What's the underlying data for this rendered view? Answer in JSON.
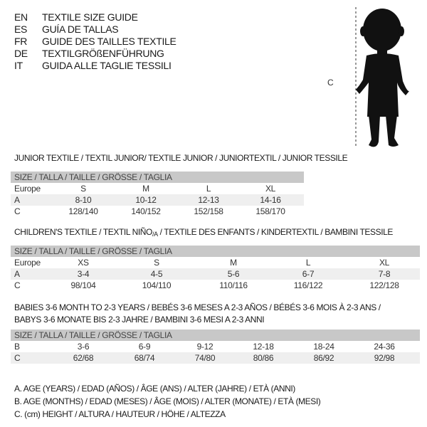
{
  "languages": [
    {
      "code": "EN",
      "text": "TEXTILE SIZE GUIDE"
    },
    {
      "code": "ES",
      "text": "GUÍA DE TALLAS"
    },
    {
      "code": "FR",
      "text": "GUIDE DES TAILLES TEXTILE"
    },
    {
      "code": "DE",
      "text": "TEXTILGRÖßENFÜHRUNG"
    },
    {
      "code": "IT",
      "text": "GUIDA ALLE TAGLIE TESSILI"
    }
  ],
  "figure": {
    "label": "C"
  },
  "junior": {
    "title": "JUNIOR TEXTILE / TEXTIL JUNIOR/ TEXTILE JUNIOR / JUNIORTEXTIL / JUNIOR TESSILE",
    "header": "SIZE / TALLA / TAILLE / GRÖSSE / TAGLIA",
    "rows": [
      {
        "label": "Europe",
        "values": [
          "S",
          "M",
          "L",
          "XL"
        ]
      },
      {
        "label": "A",
        "values": [
          "8-10",
          "10-12",
          "12-13",
          "14-16"
        ]
      },
      {
        "label": "C",
        "values": [
          "128/140",
          "140/152",
          "152/158",
          "158/170"
        ]
      }
    ]
  },
  "children": {
    "title": "CHILDREN'S TEXTILE / TEXTIL NIÑO/A / TEXTILE DES ENFANTS / KINDERTEXTIL / BAMBINI TESSILE",
    "header": "SIZE / TALLA / TAILLE / GRÖSSE / TAGLIA",
    "rows": [
      {
        "label": "Europe",
        "values": [
          "XS",
          "S",
          "M",
          "L",
          "XL"
        ]
      },
      {
        "label": "A",
        "values": [
          "3-4",
          "4-5",
          "5-6",
          "6-7",
          "7-8"
        ]
      },
      {
        "label": "C",
        "values": [
          "98/104",
          "104/110",
          "110/116",
          "116/122",
          "122/128"
        ]
      }
    ]
  },
  "babies": {
    "title1": "BABIES 3-6 MONTH TO 2-3 YEARS / BEBÉS 3-6 MESES A 2-3 AÑOS / BÉBÉS 3-6 MOIS À 2-3 ANS /",
    "title2": "BABYS 3-6 MONATE BIS 2-3 JAHRE / BAMBINI 3-6 MESI A 2-3 ANNI",
    "header": "SIZE / TALLA / TAILLE / GRÖSSE / TAGLIA",
    "rows": [
      {
        "label": "B",
        "values": [
          "3-6",
          "6-9",
          "9-12",
          "12-18",
          "18-24",
          "24-36"
        ]
      },
      {
        "label": "C",
        "values": [
          "62/68",
          "68/74",
          "74/80",
          "80/86",
          "86/92",
          "92/98"
        ]
      }
    ]
  },
  "legend": [
    "A. AGE (YEARS) / EDAD (AÑOS) / ÂGE (ANS) / ALTER (JAHRE) / ETÀ (ANNI)",
    "B. AGE (MONTHS) / EDAD (MESES) / ÂGE (MOIS) / ALTER (MONATE) / ETÀ (MESI)",
    "C. (cm) HEIGHT / ALTURA / HAUTEUR / HÖHE / ALTEZZA"
  ]
}
